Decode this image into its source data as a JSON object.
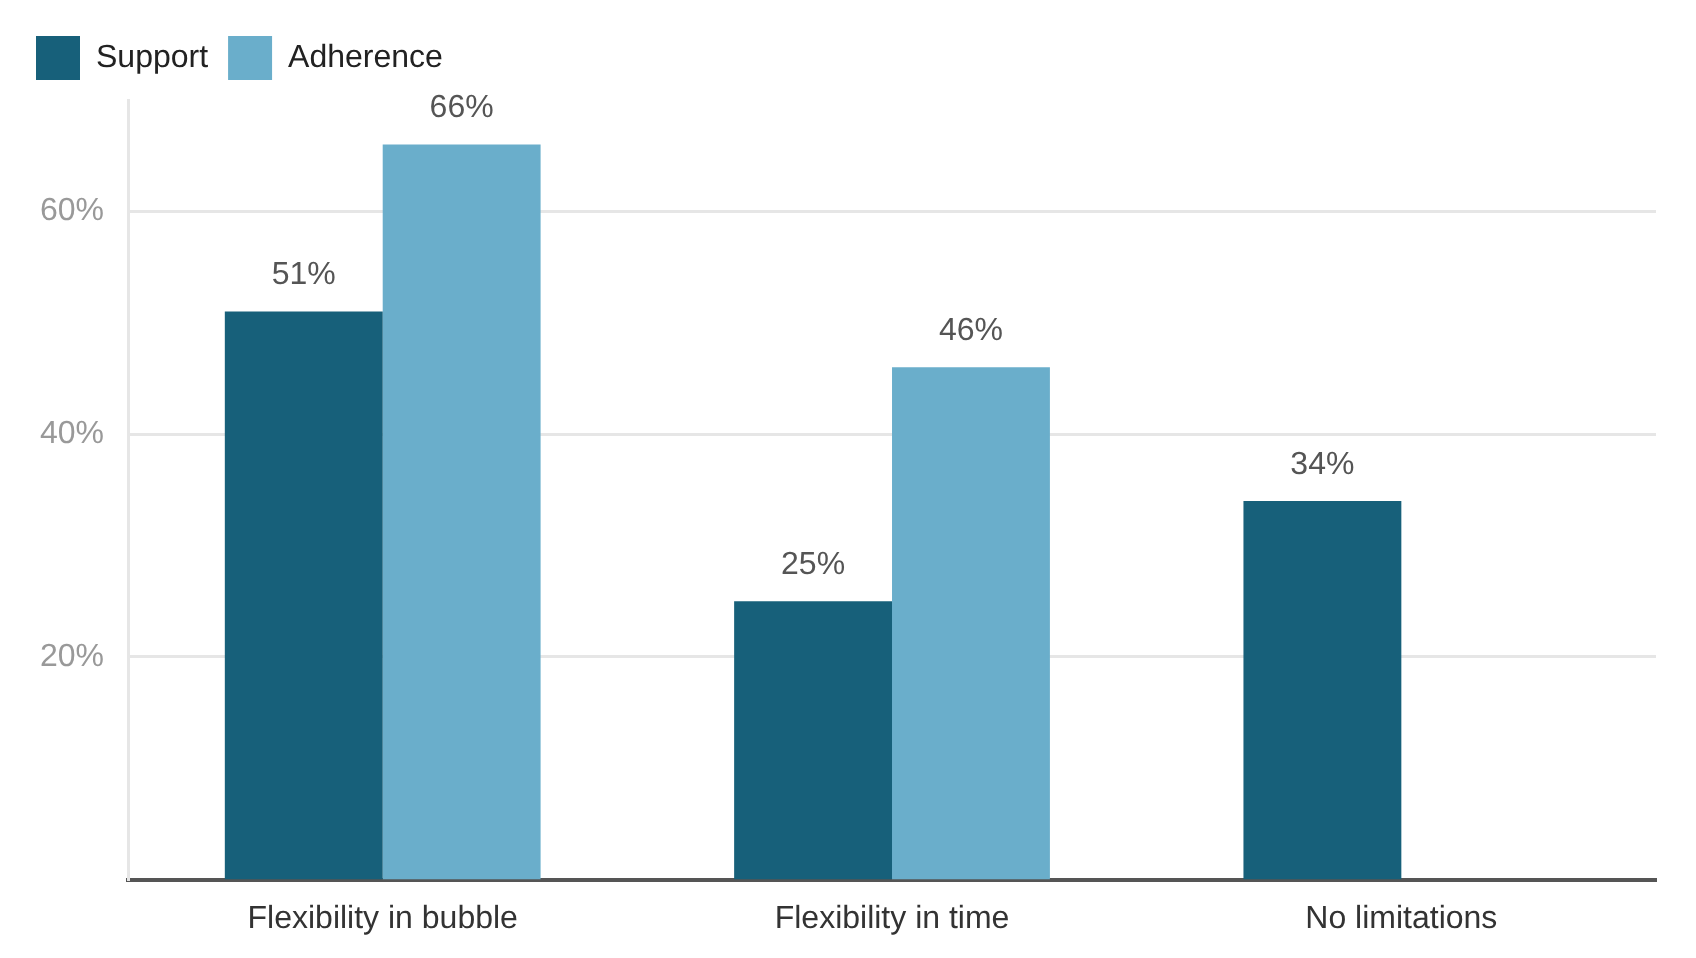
{
  "chart_data": {
    "type": "bar",
    "categories": [
      "Flexibility in bubble",
      "Flexibility in time",
      "No limitations"
    ],
    "series": [
      {
        "name": "Support",
        "color": "#17607a",
        "values": [
          51,
          25,
          34
        ],
        "value_labels": [
          "51%",
          "25%",
          "34%"
        ]
      },
      {
        "name": "Adherence",
        "color": "#6aaecb",
        "values": [
          66,
          46,
          null
        ],
        "value_labels": [
          "66%",
          "46%",
          null
        ]
      }
    ],
    "ylim": [
      0,
      70
    ],
    "yticks": [
      {
        "value": 20,
        "label": "20%"
      },
      {
        "value": 40,
        "label": "40%"
      },
      {
        "value": 60,
        "label": "60%"
      }
    ],
    "grid": "y",
    "legend": "top left"
  }
}
